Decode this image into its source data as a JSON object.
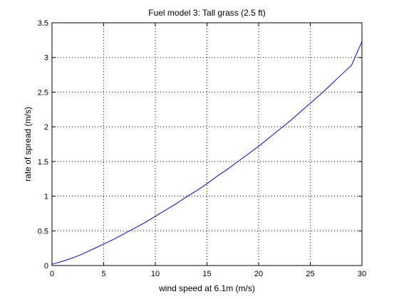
{
  "chart_data": {
    "type": "line",
    "title": "Fuel model 3: Tall grass (2.5 ft)",
    "xlabel": "wind speed at 6.1m (m/s)",
    "ylabel": "rate of spread (m/s)",
    "xlim": [
      0,
      30
    ],
    "ylim": [
      0,
      3.5
    ],
    "xticks": [
      "0",
      "5",
      "10",
      "15",
      "20",
      "25",
      "30"
    ],
    "yticks": [
      "0",
      "0.5",
      "1",
      "1.5",
      "2",
      "2.5",
      "3",
      "3.5"
    ],
    "grid": true,
    "series": [
      {
        "color": "#0000ff",
        "x": [
          0,
          1,
          2,
          3,
          4,
          5,
          6,
          7,
          8,
          9,
          10,
          11,
          12,
          13,
          14,
          15,
          16,
          17,
          18,
          19,
          20,
          21,
          22,
          23,
          24,
          25,
          26,
          27,
          28,
          29,
          30
        ],
        "y": [
          0.02,
          0.06,
          0.11,
          0.17,
          0.24,
          0.31,
          0.38,
          0.46,
          0.54,
          0.62,
          0.71,
          0.8,
          0.89,
          0.99,
          1.08,
          1.18,
          1.29,
          1.39,
          1.5,
          1.61,
          1.72,
          1.84,
          1.96,
          2.08,
          2.21,
          2.34,
          2.47,
          2.61,
          2.75,
          2.89,
          3.23
        ]
      }
    ]
  }
}
